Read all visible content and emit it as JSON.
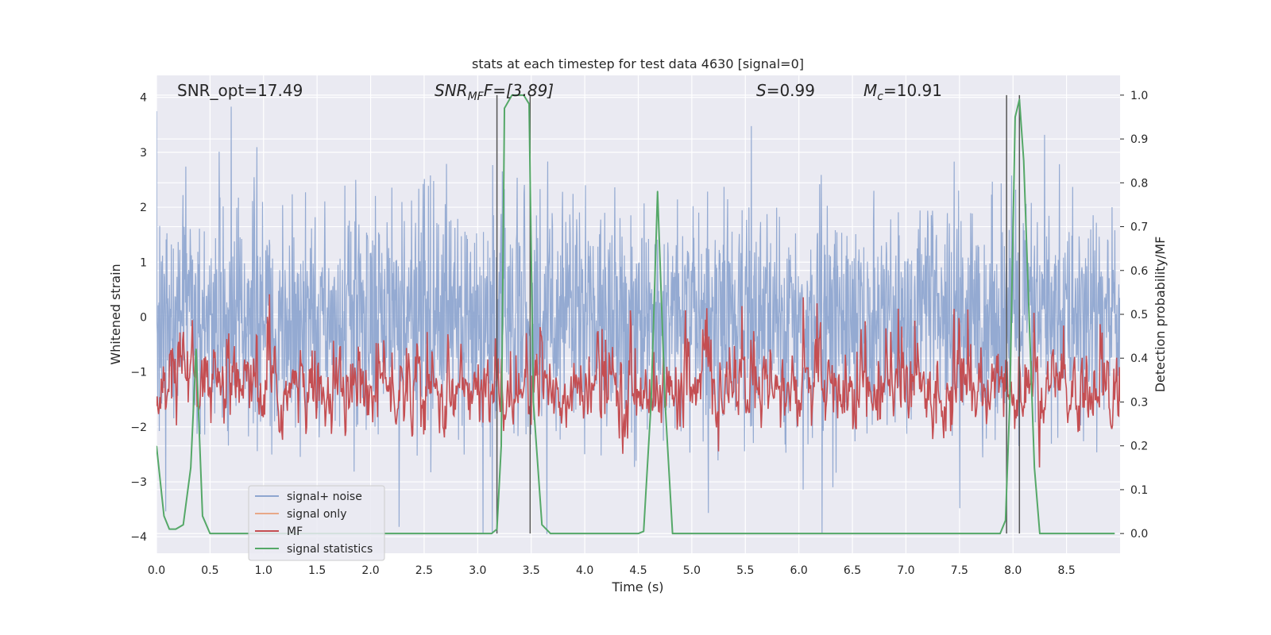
{
  "chart_data": {
    "type": "line",
    "title": "stats at each timestep for test data 4630 [signal=0]",
    "xlabel": "Time (s)",
    "ylabel": "Whitened strain",
    "y2label": "Detection probability/MF",
    "xlim": [
      0,
      9.0
    ],
    "ylim": [
      -4.3,
      4.4
    ],
    "y2lim": [
      -0.045,
      1.045
    ],
    "grid": true,
    "legend_position": "lower-left",
    "x_ticks": [
      "0.0",
      "0.5",
      "1.0",
      "1.5",
      "2.0",
      "2.5",
      "3.0",
      "3.5",
      "4.0",
      "4.5",
      "5.0",
      "5.5",
      "6.0",
      "6.5",
      "7.0",
      "7.5",
      "8.0",
      "8.5"
    ],
    "y_ticks": [
      "4",
      "3",
      "2",
      "1",
      "0",
      "−1",
      "−2",
      "−3",
      "−4"
    ],
    "y2_ticks": [
      "1.0",
      "0.9",
      "0.8",
      "0.7",
      "0.6",
      "0.5",
      "0.4",
      "0.3",
      "0.2",
      "0.1",
      "0.0"
    ],
    "annotations": {
      "snr_opt": "SNR_opt=17.49",
      "snr_mf_main": "SNR",
      "snr_mf_sub": "MF",
      "snr_mf_value": "F=[3.89]",
      "s_main": "S",
      "s_value": "=0.99",
      "mc_main": "M",
      "mc_sub": "c",
      "mc_value": "=10.91"
    },
    "vlines": [
      3.18,
      3.49,
      7.94,
      8.06
    ],
    "series": [
      {
        "name": "signal+ noise",
        "color": "#8fa6d0",
        "description": "noisy whitened strain, amplitude about ±1.7 with spikes to ±3.9"
      },
      {
        "name": "signal only",
        "color": "#e8a888",
        "values": []
      },
      {
        "name": "MF",
        "color": "#c44e52",
        "description": "matched filter output, about 0.1 to 0.95 on right axis"
      },
      {
        "name": "signal statistics",
        "color": "#55a868",
        "x": [
          0.0,
          0.07,
          0.12,
          0.18,
          0.25,
          0.32,
          0.37,
          0.43,
          0.5,
          0.6,
          1.0,
          2.0,
          3.0,
          3.13,
          3.18,
          3.22,
          3.25,
          3.32,
          3.38,
          3.43,
          3.48,
          3.52,
          3.6,
          3.68,
          4.0,
          4.5,
          4.55,
          4.62,
          4.68,
          4.75,
          4.82,
          5.0,
          6.0,
          7.0,
          7.5,
          7.88,
          7.93,
          7.97,
          8.02,
          8.06,
          8.1,
          8.2,
          8.25,
          8.5,
          8.95
        ],
        "y": [
          0.2,
          0.04,
          0.01,
          0.01,
          0.02,
          0.15,
          0.42,
          0.04,
          0.0,
          0.0,
          0.0,
          0.0,
          0.0,
          0.0,
          0.01,
          0.2,
          0.97,
          1.0,
          1.0,
          1.0,
          0.98,
          0.3,
          0.02,
          0.0,
          0.0,
          0.0,
          0.005,
          0.3,
          0.78,
          0.3,
          0.0,
          0.0,
          0.0,
          0.0,
          0.0,
          0.0,
          0.03,
          0.3,
          0.95,
          0.99,
          0.85,
          0.15,
          0.0,
          0.0,
          0.0
        ]
      }
    ]
  }
}
